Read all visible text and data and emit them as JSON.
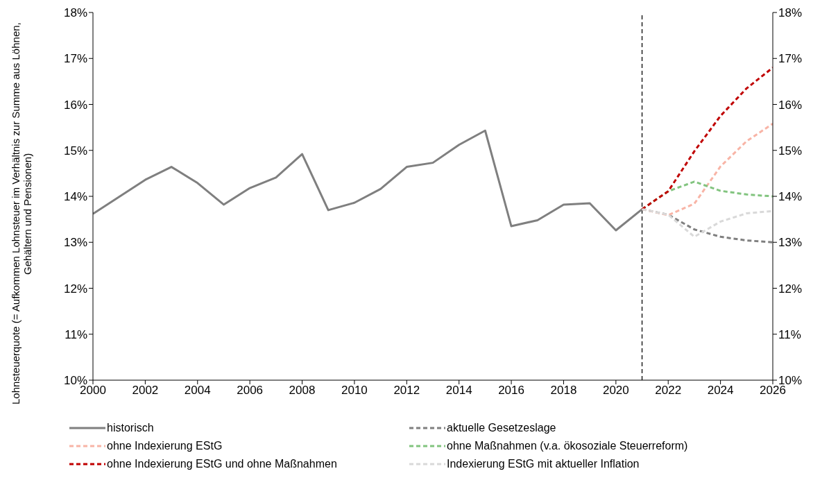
{
  "chart_data": {
    "type": "line",
    "ylabel": "Lohnsteuerquote (= Aufkommen Lohnsteuer im Verhältnis zur Summe aus Löhnen, Gehältern und Pensionen)",
    "xlim": [
      2000,
      2026
    ],
    "xticks": [
      2000,
      2002,
      2004,
      2006,
      2008,
      2010,
      2012,
      2014,
      2016,
      2018,
      2020,
      2022,
      2024,
      2026
    ],
    "ylim": [
      10,
      18
    ],
    "yticks": [
      {
        "value": 10,
        "label": "10%"
      },
      {
        "value": 11,
        "label": "11%"
      },
      {
        "value": 12,
        "label": "12%"
      },
      {
        "value": 13,
        "label": "13%"
      },
      {
        "value": 14,
        "label": "14%"
      },
      {
        "value": 15,
        "label": "15%"
      },
      {
        "value": 16,
        "label": "16%"
      },
      {
        "value": 17,
        "label": "17%"
      },
      {
        "value": 18,
        "label": "18%"
      }
    ],
    "y2lim": [
      10,
      18
    ],
    "y2ticks": [
      {
        "value": 10,
        "label": "10%"
      },
      {
        "value": 11,
        "label": "11%"
      },
      {
        "value": 12,
        "label": "12%"
      },
      {
        "value": 13,
        "label": "13%"
      },
      {
        "value": 14,
        "label": "14%"
      },
      {
        "value": 15,
        "label": "15%"
      },
      {
        "value": 16,
        "label": "16%"
      },
      {
        "value": 17,
        "label": "17%"
      },
      {
        "value": 18,
        "label": "18%"
      }
    ],
    "grid": false,
    "legend": "bottom",
    "marker": "none",
    "ref_lines": [
      {
        "axis": "x",
        "value": 2021,
        "color": "#000000",
        "line_style": "dashed"
      }
    ],
    "series": [
      {
        "name": "historisch",
        "color": "#7f7f7f",
        "line_style": "solid",
        "x": [
          2000,
          2001,
          2002,
          2003,
          2004,
          2005,
          2006,
          2007,
          2008,
          2009,
          2010,
          2011,
          2012,
          2013,
          2014,
          2015,
          2016,
          2017,
          2018,
          2019,
          2020,
          2021
        ],
        "values": [
          13.62,
          13.99,
          14.36,
          14.64,
          14.29,
          13.82,
          14.18,
          14.41,
          14.92,
          13.7,
          13.86,
          14.16,
          14.64,
          14.73,
          15.12,
          15.43,
          13.35,
          13.48,
          13.82,
          13.85,
          13.26,
          13.72
        ]
      },
      {
        "name": "aktuelle Gesetzeslage",
        "color": "#7f7f7f",
        "line_style": "dashed",
        "x": [
          2021,
          2022,
          2023,
          2024,
          2025,
          2026
        ],
        "values": [
          13.72,
          13.6,
          13.28,
          13.12,
          13.04,
          13.0
        ]
      },
      {
        "name": "ohne Indexierung EStG",
        "color": "#f8b4a6",
        "line_style": "dashed",
        "x": [
          2021,
          2022,
          2023,
          2024,
          2025,
          2026
        ],
        "values": [
          13.72,
          13.59,
          13.84,
          14.65,
          15.2,
          15.58
        ]
      },
      {
        "name": "ohne Maßnahmen (v.a. ökosoziale Steuerreform)",
        "color": "#82c47f",
        "line_style": "dashed",
        "x": [
          2021,
          2022,
          2023,
          2024,
          2025,
          2026
        ],
        "values": [
          13.72,
          14.11,
          14.32,
          14.12,
          14.04,
          14.0
        ]
      },
      {
        "name": "ohne Indexierung EStG und ohne Maßnahmen",
        "color": "#c00000",
        "line_style": "dashed",
        "x": [
          2021,
          2022,
          2023,
          2024,
          2025,
          2026
        ],
        "values": [
          13.72,
          14.11,
          14.98,
          15.75,
          16.35,
          16.8
        ]
      },
      {
        "name": "Indexierung EStG mit aktueller Inflation",
        "color": "#d9d9d9",
        "line_style": "dashed",
        "x": [
          2021,
          2022,
          2023,
          2024,
          2025,
          2026
        ],
        "values": [
          13.72,
          13.6,
          13.12,
          13.45,
          13.63,
          13.68
        ]
      }
    ]
  }
}
